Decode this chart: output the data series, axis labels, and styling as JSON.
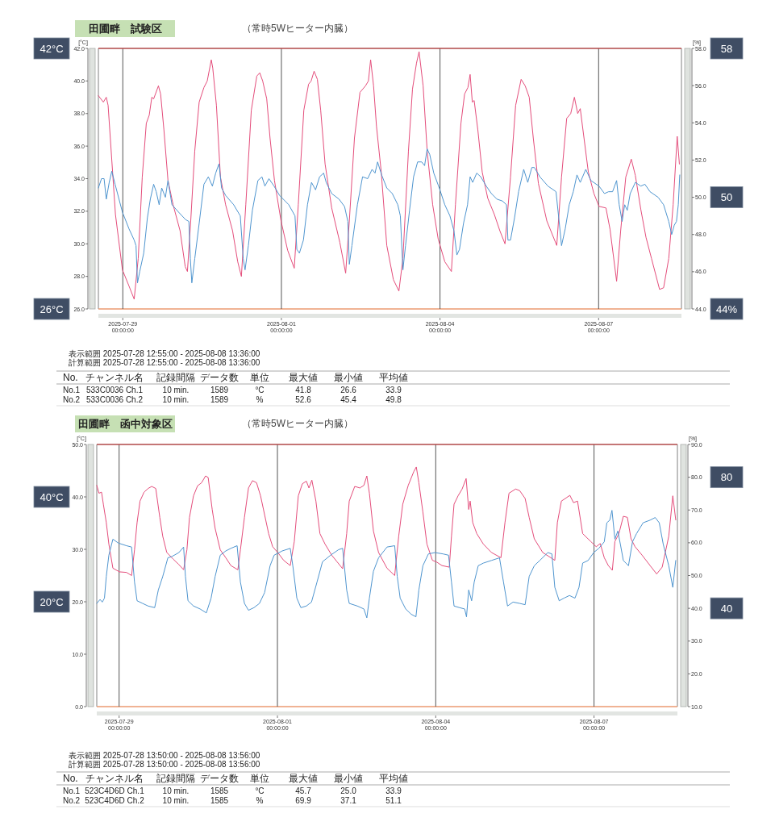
{
  "chart_data": [
    {
      "type": "line",
      "title": "田圃畔　試験区",
      "subtitle": "（常時5Wヒーター内臓）",
      "ylabel": "[°C]",
      "y2label": "[%]",
      "xlim": [
        "2025-07-28T12:55",
        "2025-08-08T13:36"
      ],
      "xticks": [
        {
          "value": "2025-07-29T00:00",
          "label": "2025-07-29 00:00:00"
        },
        {
          "value": "2025-08-01T00:00",
          "label": "2025-08-01 00:00:00"
        },
        {
          "value": "2025-08-04T00:00",
          "label": "2025-08-04 00:00:00"
        },
        {
          "value": "2025-08-07T00:00",
          "label": "2025-08-07 00:00:00"
        }
      ],
      "ylim": [
        26,
        42
      ],
      "yticks": [
        {
          "value": 26,
          "label": "26.0"
        },
        {
          "value": 28,
          "label": "28.0"
        },
        {
          "value": 30,
          "label": "30.0"
        },
        {
          "value": 32,
          "label": "32.0"
        },
        {
          "value": 34,
          "label": "34.0"
        },
        {
          "value": 36,
          "label": "36.0"
        },
        {
          "value": 38,
          "label": "38.0"
        },
        {
          "value": 40,
          "label": "40.0"
        },
        {
          "value": 42,
          "label": "42.0"
        }
      ],
      "y2lim": [
        44,
        58
      ],
      "y2ticks": [
        {
          "value": 44,
          "label": "44.0"
        },
        {
          "value": 46,
          "label": "46.0"
        },
        {
          "value": 48,
          "label": "48.0"
        },
        {
          "value": 50,
          "label": "50.0"
        },
        {
          "value": 52,
          "label": "52.0"
        },
        {
          "value": 54,
          "label": "54.0"
        },
        {
          "value": 56,
          "label": "56.0"
        },
        {
          "value": 58,
          "label": "58.0"
        }
      ],
      "grid": "x",
      "ref_lines": [
        {
          "axis": "y",
          "value": 42,
          "color": "#b04848"
        }
      ],
      "series": [
        {
          "color": "#e44d7b",
          "x": [
            "2025-07-28T12:55",
            "2025-07-28T15:10",
            "2025-07-28T16:30",
            "2025-07-28T17:20",
            "2025-07-28T20:40",
            "2025-07-28T23:50",
            "2025-07-29T02:50",
            "2025-07-29T05:10",
            "2025-07-29T07:00",
            "2025-07-29T08:50",
            "2025-07-29T10:40",
            "2025-07-29T12:00",
            "2025-07-29T13:10",
            "2025-07-29T14:00",
            "2025-07-29T16:10",
            "2025-07-29T17:10",
            "2025-07-29T18:40",
            "2025-07-29T20:30",
            "2025-07-29T22:50",
            "2025-07-30T02:00",
            "2025-07-30T04:20",
            "2025-07-30T05:20",
            "2025-07-30T06:50",
            "2025-07-30T08:40",
            "2025-07-30T10:40",
            "2025-07-30T12:50",
            "2025-07-30T14:20",
            "2025-07-30T16:10",
            "2025-07-30T16:50",
            "2025-07-30T18:30",
            "2025-07-30T20:20",
            "2025-07-30T22:40",
            "2025-07-31T01:50",
            "2025-07-31T04:10",
            "2025-07-31T05:50",
            "2025-07-31T07:50",
            "2025-07-31T10:20",
            "2025-07-31T12:50",
            "2025-07-31T14:10",
            "2025-07-31T15:30",
            "2025-07-31T17:20",
            "2025-07-31T18:50",
            "2025-07-31T20:50",
            "2025-07-31T23:50",
            "2025-08-01T02:50",
            "2025-08-01T05:50",
            "2025-08-01T07:40",
            "2025-08-01T10:10",
            "2025-08-01T12:20",
            "2025-08-01T13:30",
            "2025-08-01T14:50",
            "2025-08-01T16:20",
            "2025-08-01T17:50",
            "2025-08-01T19:50",
            "2025-08-01T22:50",
            "2025-08-02T02:30",
            "2025-08-02T05:10",
            "2025-08-02T06:50",
            "2025-08-02T09:10",
            "2025-08-02T11:40",
            "2025-08-02T14:10",
            "2025-08-02T15:30",
            "2025-08-02T16:30",
            "2025-08-02T17:50",
            "2025-08-02T19:10",
            "2025-08-02T21:20",
            "2025-08-02T23:50",
            "2025-08-03T02:50",
            "2025-08-03T05:20",
            "2025-08-03T07:10",
            "2025-08-03T09:40",
            "2025-08-03T11:30",
            "2025-08-03T13:20",
            "2025-08-03T14:30",
            "2025-08-03T16:20",
            "2025-08-03T18:10",
            "2025-08-03T20:40",
            "2025-08-03T23:10",
            "2025-08-04T02:10",
            "2025-08-04T05:10",
            "2025-08-04T07:00",
            "2025-08-04T09:30",
            "2025-08-04T11:10",
            "2025-08-04T12:40",
            "2025-08-04T13:40",
            "2025-08-04T14:40",
            "2025-08-04T15:30",
            "2025-08-04T17:10",
            "2025-08-04T19:10",
            "2025-08-04T21:40",
            "2025-08-05T00:40",
            "2025-08-05T03:10",
            "2025-08-05T05:30",
            "2025-08-05T08:00",
            "2025-08-05T10:20",
            "2025-08-05T12:50",
            "2025-08-05T14:40",
            "2025-08-05T16:30",
            "2025-08-05T18:20",
            "2025-08-05T20:40",
            "2025-08-06T00:30",
            "2025-08-06T05:00",
            "2025-08-06T07:10",
            "2025-08-06T09:30",
            "2025-08-06T11:20",
            "2025-08-06T13:00",
            "2025-08-06T14:30",
            "2025-08-06T15:40",
            "2025-08-06T17:10",
            "2025-08-06T19:20",
            "2025-08-06T21:50",
            "2025-08-07T00:10",
            "2025-08-07T03:20",
            "2025-08-07T05:10",
            "2025-08-07T08:10",
            "2025-08-07T10:00",
            "2025-08-07T12:20",
            "2025-08-07T14:50",
            "2025-08-07T16:40",
            "2025-08-07T19:10",
            "2025-08-07T21:30",
            "2025-08-08T00:00",
            "2025-08-08T03:40",
            "2025-08-08T05:30",
            "2025-08-08T07:50",
            "2025-08-08T09:50",
            "2025-08-08T11:40",
            "2025-08-08T12:40"
          ],
          "values": [
            39.1,
            38.7,
            39.0,
            38.5,
            31.8,
            28.4,
            27.4,
            26.6,
            29.1,
            34.1,
            37.4,
            37.9,
            39.0,
            38.9,
            39.7,
            39.2,
            37.0,
            33.9,
            32.4,
            30.8,
            28.6,
            28.3,
            31.4,
            35.7,
            38.7,
            39.6,
            40.0,
            41.3,
            40.8,
            38.5,
            34.1,
            32.4,
            30.8,
            28.9,
            28.0,
            32.4,
            38.2,
            40.3,
            40.5,
            40.0,
            38.9,
            36.5,
            33.9,
            31.4,
            29.6,
            28.5,
            32.4,
            38.2,
            39.8,
            40.0,
            40.6,
            40.1,
            38.2,
            34.9,
            32.2,
            30.1,
            28.2,
            31.4,
            36.5,
            39.3,
            39.7,
            40.0,
            41.3,
            39.7,
            37.2,
            34.4,
            29.9,
            27.8,
            27.1,
            29.1,
            35.7,
            39.5,
            41.1,
            41.8,
            39.7,
            35.7,
            32.4,
            30.3,
            28.9,
            28.3,
            32.4,
            37.4,
            39.2,
            39.6,
            40.4,
            38.7,
            38.8,
            37.0,
            34.4,
            32.8,
            31.8,
            30.8,
            30.0,
            34.1,
            38.5,
            40.1,
            39.7,
            39.0,
            36.5,
            33.7,
            31.4,
            29.9,
            34.1,
            37.7,
            38.0,
            39.0,
            38.0,
            38.3,
            36.7,
            34.4,
            33.1,
            32.3,
            32.2,
            30.9,
            27.7,
            30.8,
            34.1,
            35.2,
            34.2,
            32.1,
            30.4,
            29.1,
            27.2,
            27.3,
            29.1,
            32.4,
            36.6,
            34.9
          ]
        },
        {
          "color": "#4f95cf",
          "axis": "y2",
          "x": [
            "2025-07-28T12:55",
            "2025-07-28T14:20",
            "2025-07-28T15:30",
            "2025-07-28T16:30",
            "2025-07-28T17:50",
            "2025-07-28T19:00",
            "2025-07-28T20:30",
            "2025-07-28T23:50",
            "2025-07-29T02:50",
            "2025-07-29T05:10",
            "2025-07-29T06:00",
            "2025-07-29T06:40",
            "2025-07-29T07:40",
            "2025-07-29T09:30",
            "2025-07-29T11:10",
            "2025-07-29T12:30",
            "2025-07-29T14:00",
            "2025-07-29T15:10",
            "2025-07-29T16:30",
            "2025-07-29T17:40",
            "2025-07-29T19:20",
            "2025-07-29T20:30",
            "2025-07-29T22:20",
            "2025-07-30T01:20",
            "2025-07-30T04:30",
            "2025-07-30T06:00",
            "2025-07-30T06:40",
            "2025-07-30T07:20",
            "2025-07-30T08:40",
            "2025-07-30T10:40",
            "2025-07-30T12:50",
            "2025-07-30T14:50",
            "2025-07-30T16:40",
            "2025-07-30T18:10",
            "2025-07-30T19:40",
            "2025-07-30T20:50",
            "2025-07-30T22:40",
            "2025-07-31T02:20",
            "2025-07-31T05:20",
            "2025-07-31T06:40",
            "2025-07-31T07:30",
            "2025-07-31T09:00",
            "2025-07-31T10:50",
            "2025-07-31T13:20",
            "2025-07-31T15:10",
            "2025-07-31T16:30",
            "2025-07-31T18:20",
            "2025-07-31T20:40",
            "2025-07-31T23:10",
            "2025-08-01T03:20",
            "2025-08-01T06:10",
            "2025-08-01T07:00",
            "2025-08-01T08:10",
            "2025-08-01T10:00",
            "2025-08-01T11:50",
            "2025-08-01T13:40",
            "2025-08-01T15:30",
            "2025-08-01T17:20",
            "2025-08-01T19:10",
            "2025-08-01T20:20",
            "2025-08-01T22:50",
            "2025-08-02T02:10",
            "2025-08-02T04:40",
            "2025-08-02T06:10",
            "2025-08-02T06:50",
            "2025-08-02T08:00",
            "2025-08-02T10:30",
            "2025-08-02T12:50",
            "2025-08-02T15:10",
            "2025-08-02T17:10",
            "2025-08-02T18:30",
            "2025-08-02T19:40",
            "2025-08-02T21:30",
            "2025-08-02T23:50",
            "2025-08-03T02:20",
            "2025-08-03T04:50",
            "2025-08-03T06:00",
            "2025-08-03T07:10",
            "2025-08-03T08:20",
            "2025-08-03T10:10",
            "2025-08-03T12:00",
            "2025-08-03T13:50",
            "2025-08-03T15:40",
            "2025-08-03T17:00",
            "2025-08-03T18:10",
            "2025-08-03T19:20",
            "2025-08-03T21:10",
            "2025-08-03T23:40",
            "2025-08-04T02:10",
            "2025-08-04T04:30",
            "2025-08-04T06:20",
            "2025-08-04T07:40",
            "2025-08-04T08:50",
            "2025-08-04T10:40",
            "2025-08-04T12:30",
            "2025-08-04T13:40",
            "2025-08-04T14:50",
            "2025-08-04T16:40",
            "2025-08-04T18:30",
            "2025-08-04T21:00",
            "2025-08-04T23:20",
            "2025-08-05T01:50",
            "2025-08-05T04:20",
            "2025-08-05T06:10",
            "2025-08-05T06:50",
            "2025-08-05T08:00",
            "2025-08-05T09:50",
            "2025-08-05T11:40",
            "2025-08-05T14:00",
            "2025-08-05T15:50",
            "2025-08-05T17:40",
            "2025-08-05T18:50",
            "2025-08-05T21:20",
            "2025-08-06T01:00",
            "2025-08-06T04:40",
            "2025-08-06T06:30",
            "2025-08-06T07:10",
            "2025-08-06T08:50",
            "2025-08-06T10:40",
            "2025-08-06T12:30",
            "2025-08-06T14:10",
            "2025-08-06T15:40",
            "2025-08-06T18:10",
            "2025-08-06T20:30",
            "2025-08-07T00:10",
            "2025-08-07T02:40",
            "2025-08-07T04:30",
            "2025-08-07T06:20",
            "2025-08-07T08:10",
            "2025-08-07T09:20",
            "2025-08-07T10:40",
            "2025-08-07T11:50",
            "2025-08-07T13:00",
            "2025-08-07T14:20",
            "2025-08-07T15:30",
            "2025-08-07T16:40",
            "2025-08-07T19:10",
            "2025-08-07T21:00",
            "2025-08-07T23:20",
            "2025-08-08T03:00",
            "2025-08-08T05:30",
            "2025-08-08T07:50",
            "2025-08-08T09:10",
            "2025-08-08T10:20",
            "2025-08-08T11:20",
            "2025-08-08T12:10",
            "2025-08-08T12:50"
          ],
          "values": [
            50.5,
            51.0,
            51.0,
            49.9,
            50.8,
            51.4,
            50.7,
            49.2,
            48.3,
            47.7,
            47.4,
            45.4,
            46.0,
            47.0,
            48.9,
            49.9,
            50.7,
            50.3,
            49.6,
            50.5,
            50.0,
            50.9,
            49.6,
            49.2,
            48.8,
            48.7,
            46.7,
            45.4,
            46.7,
            48.6,
            50.7,
            51.1,
            50.6,
            51.3,
            51.8,
            50.5,
            50.1,
            49.6,
            49.0,
            46.7,
            46.1,
            47.4,
            49.3,
            50.9,
            51.1,
            50.6,
            51.0,
            50.6,
            50.1,
            49.6,
            49.0,
            47.2,
            47.0,
            47.7,
            49.6,
            50.8,
            50.4,
            51.1,
            51.3,
            50.8,
            50.2,
            49.9,
            49.5,
            48.7,
            46.4,
            47.4,
            49.6,
            51.1,
            51.0,
            51.5,
            51.3,
            51.9,
            51.2,
            50.5,
            50.2,
            49.6,
            49.0,
            46.1,
            47.4,
            49.3,
            51.1,
            51.9,
            51.9,
            51.7,
            52.6,
            52.3,
            51.3,
            50.5,
            49.6,
            49.0,
            48.2,
            46.9,
            47.2,
            48.6,
            49.6,
            51.1,
            50.8,
            51.3,
            51.1,
            50.6,
            50.2,
            49.9,
            49.8,
            49.6,
            47.7,
            47.7,
            48.9,
            50.3,
            51.5,
            50.8,
            51.6,
            51.6,
            51.1,
            50.6,
            50.3,
            48.2,
            47.4,
            48.3,
            49.6,
            50.3,
            51.2,
            50.8,
            51.5,
            50.9,
            50.6,
            50.2,
            50.3,
            50.3,
            50.9,
            49.6,
            48.7,
            49.6,
            49.3,
            50.2,
            50.5,
            50.8,
            50.6,
            50.7,
            50.3,
            50.0,
            49.6,
            48.7,
            48.0,
            48.5,
            48.7,
            49.6,
            51.2
          ]
        }
      ],
      "annotations": [
        "42°C",
        "26°C",
        "58",
        "50",
        "44%",
        "表示範囲 2025-07-28 12:55:00 - 2025-08-08 13:36:00",
        "計算範囲 2025-07-28 12:55:00 - 2025-08-08 13:36:00",
        "No.",
        "チャンネル名",
        "記録間隔",
        "データ数",
        "単位",
        "最大値",
        "最小値",
        "平均値",
        "No.1",
        "533C0036 Ch.1",
        "10 min.",
        "1589",
        "°C",
        "41.8",
        "26.6",
        "33.9",
        "No.2",
        "533C0036 Ch.2",
        "10 min.",
        "1589",
        "%",
        "52.6",
        "45.4",
        "49.8"
      ]
    },
    {
      "type": "line",
      "title": "田圃畔　函中対象区",
      "subtitle": "（常時5Wヒーター内臓）",
      "ylabel": "[°C]",
      "y2label": "[%]",
      "xlim": [
        "2025-07-28T13:50",
        "2025-08-08T13:56"
      ],
      "xticks": [
        {
          "value": "2025-07-29T00:00",
          "label": "2025-07-29 00:00:00"
        },
        {
          "value": "2025-08-01T00:00",
          "label": "2025-08-01 00:00:00"
        },
        {
          "value": "2025-08-04T00:00",
          "label": "2025-08-04 00:00:00"
        },
        {
          "value": "2025-08-07T00:00",
          "label": "2025-08-07 00:00:00"
        }
      ],
      "ylim": [
        0,
        50
      ],
      "yticks": [
        {
          "value": 0,
          "label": "0.0"
        },
        {
          "value": 10,
          "label": "10.0"
        },
        {
          "value": 20,
          "label": "20.0"
        },
        {
          "value": 30,
          "label": "30.0"
        },
        {
          "value": 40,
          "label": "40.0"
        },
        {
          "value": 50,
          "label": "50.0"
        }
      ],
      "y2lim": [
        10,
        90
      ],
      "y2ticks": [
        {
          "value": 10,
          "label": "10.0"
        },
        {
          "value": 20,
          "label": "20.0"
        },
        {
          "value": 30,
          "label": "30.0"
        },
        {
          "value": 40,
          "label": "40.0"
        },
        {
          "value": 50,
          "label": "50.0"
        },
        {
          "value": 60,
          "label": "60.0"
        },
        {
          "value": 70,
          "label": "70.0"
        },
        {
          "value": 80,
          "label": "80.0"
        },
        {
          "value": 90,
          "label": "90.0"
        }
      ],
      "grid": "x",
      "ref_lines": [
        {
          "axis": "y",
          "value": 50,
          "color": "#b04848"
        }
      ],
      "series": [
        {
          "color": "#e44d7b",
          "x": [
            "2025-07-28T13:50",
            "2025-07-28T14:50",
            "2025-07-28T16:00",
            "2025-07-28T16:50",
            "2025-07-28T18:10",
            "2025-07-28T19:20",
            "2025-07-28T21:10",
            "2025-07-29T00:10",
            "2025-07-29T03:20",
            "2025-07-29T05:40",
            "2025-07-29T07:00",
            "2025-07-29T08:10",
            "2025-07-29T09:30",
            "2025-07-29T11:20",
            "2025-07-29T13:10",
            "2025-07-29T14:50",
            "2025-07-29T16:40",
            "2025-07-29T18:30",
            "2025-07-29T19:50",
            "2025-07-29T21:40",
            "2025-07-30T00:40",
            "2025-07-30T03:10",
            "2025-07-30T05:20",
            "2025-07-30T06:50",
            "2025-07-30T08:00",
            "2025-07-30T09:50",
            "2025-07-30T11:40",
            "2025-07-30T13:30",
            "2025-07-30T15:20",
            "2025-07-30T16:30",
            "2025-07-30T18:20",
            "2025-07-30T19:40",
            "2025-07-30T22:00",
            "2025-07-31T00:30",
            "2025-07-31T02:50",
            "2025-07-31T06:00",
            "2025-07-31T07:10",
            "2025-07-31T09:00",
            "2025-07-31T10:50",
            "2025-07-31T12:40",
            "2025-07-31T14:30",
            "2025-07-31T16:20",
            "2025-07-31T18:10",
            "2025-07-31T20:00",
            "2025-07-31T21:50",
            "2025-08-01T00:20",
            "2025-08-01T02:50",
            "2025-08-01T05:50",
            "2025-08-01T07:40",
            "2025-08-01T09:30",
            "2025-08-01T11:20",
            "2025-08-01T13:10",
            "2025-08-01T14:20",
            "2025-08-01T15:40",
            "2025-08-01T17:30",
            "2025-08-01T19:20",
            "2025-08-01T21:40",
            "2025-08-02T00:40",
            "2025-08-02T03:10",
            "2025-08-02T05:40",
            "2025-08-02T07:30",
            "2025-08-02T08:40",
            "2025-08-02T11:10",
            "2025-08-02T13:30",
            "2025-08-02T15:20",
            "2025-08-02T16:40",
            "2025-08-02T17:50",
            "2025-08-02T19:40",
            "2025-08-02T22:00",
            "2025-08-03T01:50",
            "2025-08-03T05:20",
            "2025-08-03T07:10",
            "2025-08-03T09:00",
            "2025-08-03T11:30",
            "2025-08-03T14:00",
            "2025-08-03T15:10",
            "2025-08-03T16:20",
            "2025-08-03T18:10",
            "2025-08-03T20:00",
            "2025-08-03T22:30",
            "2025-08-04T00:20",
            "2025-08-04T02:50",
            "2025-08-04T06:10",
            "2025-08-04T07:10",
            "2025-08-04T08:20",
            "2025-08-04T10:10",
            "2025-08-04T12:00",
            "2025-08-04T13:50",
            "2025-08-04T15:00",
            "2025-08-04T15:40",
            "2025-08-04T16:50",
            "2025-08-04T18:40",
            "2025-08-04T21:40",
            "2025-08-05T01:20",
            "2025-08-05T05:40",
            "2025-08-05T07:30",
            "2025-08-05T09:20",
            "2025-08-05T12:20",
            "2025-08-05T14:10",
            "2025-08-05T16:40",
            "2025-08-05T18:30",
            "2025-08-05T20:50",
            "2025-08-06T00:40",
            "2025-08-06T04:20",
            "2025-08-06T06:10",
            "2025-08-06T07:20",
            "2025-08-06T09:10",
            "2025-08-06T11:40",
            "2025-08-06T13:00",
            "2025-08-06T14:40",
            "2025-08-06T16:30",
            "2025-08-06T18:50",
            "2025-08-06T22:30",
            "2025-08-07T01:00",
            "2025-08-07T02:50",
            "2025-08-07T04:40",
            "2025-08-07T06:30",
            "2025-08-07T08:20",
            "2025-08-07T09:30",
            "2025-08-07T11:20",
            "2025-08-07T13:20",
            "2025-08-07T15:10",
            "2025-08-07T16:50",
            "2025-08-07T18:40",
            "2025-08-07T21:50",
            "2025-08-08T01:30",
            "2025-08-08T04:30",
            "2025-08-08T07:00",
            "2025-08-08T10:00",
            "2025-08-08T11:50",
            "2025-08-08T13:10"
          ],
          "values": [
            42.2,
            40.7,
            40.9,
            38.6,
            35.1,
            31.0,
            26.4,
            25.7,
            25.6,
            25.0,
            29.9,
            35.1,
            39.2,
            40.9,
            41.6,
            42.0,
            41.6,
            36.1,
            32.5,
            29.4,
            28.1,
            27.1,
            26.1,
            29.9,
            36.1,
            40.2,
            42.1,
            42.7,
            44.0,
            43.7,
            37.6,
            34.0,
            29.9,
            28.4,
            26.9,
            26.1,
            29.9,
            36.1,
            41.7,
            43.1,
            42.7,
            40.2,
            36.6,
            33.0,
            30.5,
            29.3,
            27.9,
            26.9,
            31.5,
            40.2,
            42.5,
            43.0,
            41.7,
            43.2,
            39.2,
            33.0,
            31.0,
            28.9,
            27.6,
            26.3,
            33.0,
            39.2,
            42.0,
            41.7,
            42.2,
            44.0,
            40.7,
            33.5,
            29.4,
            26.4,
            25.0,
            32.5,
            38.6,
            42.2,
            44.8,
            45.7,
            42.7,
            37.1,
            31.0,
            27.9,
            27.6,
            26.9,
            26.6,
            32.5,
            38.6,
            40.2,
            41.5,
            43.5,
            37.6,
            39.2,
            35.1,
            33.0,
            31.0,
            29.4,
            28.4,
            35.1,
            40.7,
            41.5,
            41.2,
            39.7,
            36.1,
            32.0,
            29.4,
            28.4,
            27.9,
            35.1,
            39.2,
            39.9,
            40.3,
            38.9,
            39.2,
            33.0,
            31.5,
            30.5,
            31.1,
            28.4,
            26.9,
            26.0,
            31.5,
            33.0,
            36.3,
            36.1,
            32.0,
            30.5,
            28.9,
            26.9,
            25.3,
            26.6,
            32.5,
            40.2,
            35.6
          ]
        },
        {
          "color": "#4f95cf",
          "axis": "y2",
          "x": [
            "2025-07-28T13:50",
            "2025-07-28T15:20",
            "2025-07-28T16:20",
            "2025-07-28T17:20",
            "2025-07-28T18:10",
            "2025-07-28T19:20",
            "2025-07-28T21:10",
            "2025-07-28T23:40",
            "2025-07-29T03:20",
            "2025-07-29T05:40",
            "2025-07-29T07:00",
            "2025-07-29T08:10",
            "2025-07-29T10:40",
            "2025-07-29T13:10",
            "2025-07-29T16:10",
            "2025-07-29T17:50",
            "2025-07-29T19:50",
            "2025-07-29T22:10",
            "2025-07-30T00:00",
            "2025-07-30T03:10",
            "2025-07-30T05:20",
            "2025-07-30T06:10",
            "2025-07-30T07:20",
            "2025-07-30T09:50",
            "2025-07-30T12:50",
            "2025-07-30T15:40",
            "2025-07-30T17:50",
            "2025-07-30T19:40",
            "2025-07-30T22:00",
            "2025-07-31T00:30",
            "2025-07-31T02:50",
            "2025-07-31T05:40",
            "2025-07-31T07:10",
            "2025-07-31T09:00",
            "2025-07-31T10:50",
            "2025-07-31T13:20",
            "2025-07-31T15:50",
            "2025-07-31T18:10",
            "2025-07-31T20:40",
            "2025-07-31T22:30",
            "2025-08-01T02:10",
            "2025-08-01T05:50",
            "2025-08-01T07:00",
            "2025-08-01T08:50",
            "2025-08-01T10:40",
            "2025-08-01T13:10",
            "2025-08-01T15:30",
            "2025-08-01T18:00",
            "2025-08-01T20:30",
            "2025-08-02T00:10",
            "2025-08-02T03:50",
            "2025-08-02T05:40",
            "2025-08-02T07:30",
            "2025-08-02T08:40",
            "2025-08-02T12:20",
            "2025-08-02T15:20",
            "2025-08-02T16:40",
            "2025-08-02T17:50",
            "2025-08-02T19:40",
            "2025-08-02T22:00",
            "2025-08-03T01:50",
            "2025-08-03T05:20",
            "2025-08-03T06:30",
            "2025-08-03T07:50",
            "2025-08-03T10:20",
            "2025-08-03T12:50",
            "2025-08-03T15:00",
            "2025-08-03T16:20",
            "2025-08-03T18:10",
            "2025-08-03T20:40",
            "2025-08-03T23:40",
            "2025-08-04T03:20",
            "2025-08-04T05:50",
            "2025-08-04T07:10",
            "2025-08-04T08:20",
            "2025-08-04T10:50",
            "2025-08-04T13:10",
            "2025-08-04T14:00",
            "2025-08-04T15:00",
            "2025-08-04T16:20",
            "2025-08-04T17:30",
            "2025-08-04T19:20",
            "2025-08-04T21:40",
            "2025-08-05T01:20",
            "2025-08-05T05:00",
            "2025-08-05T06:50",
            "2025-08-05T08:40",
            "2025-08-05T11:10",
            "2025-08-05T14:10",
            "2025-08-05T16:40",
            "2025-08-05T18:30",
            "2025-08-05T20:50",
            "2025-08-05T23:20",
            "2025-08-06T03:00",
            "2025-08-06T04:50",
            "2025-08-06T06:10",
            "2025-08-06T08:10",
            "2025-08-06T10:20",
            "2025-08-06T12:50",
            "2025-08-06T15:20",
            "2025-08-06T17:10",
            "2025-08-06T18:50",
            "2025-08-06T21:20",
            "2025-08-06T23:50",
            "2025-08-07T02:10",
            "2025-08-07T04:40",
            "2025-08-07T05:50",
            "2025-08-07T07:10",
            "2025-08-07T08:10",
            "2025-08-07T09:30",
            "2025-08-07T10:50",
            "2025-08-07T12:00",
            "2025-08-07T13:20",
            "2025-08-07T14:30",
            "2025-08-07T15:40",
            "2025-08-07T17:30",
            "2025-08-07T19:20",
            "2025-08-07T22:20",
            "2025-08-08T01:30",
            "2025-08-08T03:50",
            "2025-08-08T05:40",
            "2025-08-08T07:30",
            "2025-08-08T10:00",
            "2025-08-08T11:50",
            "2025-08-08T13:10"
          ],
          "values": [
            41.5,
            42.7,
            41.9,
            43.1,
            49.7,
            56.2,
            61.1,
            59.9,
            59.1,
            58.7,
            48.0,
            42.3,
            41.5,
            40.7,
            40.2,
            45.6,
            49.7,
            55.4,
            55.8,
            57.0,
            58.7,
            49.7,
            42.3,
            40.7,
            39.8,
            38.6,
            43.1,
            49.7,
            56.2,
            57.5,
            58.3,
            59.1,
            48.0,
            41.5,
            39.4,
            40.2,
            41.5,
            44.8,
            53.0,
            56.2,
            57.5,
            58.3,
            53.0,
            43.1,
            40.2,
            40.7,
            41.9,
            48.0,
            54.2,
            56.2,
            57.9,
            58.3,
            45.6,
            41.5,
            40.7,
            39.8,
            37.1,
            43.1,
            51.3,
            55.4,
            58.7,
            59.1,
            49.7,
            43.1,
            39.8,
            38.2,
            37.4,
            45.6,
            53.0,
            56.6,
            57.0,
            56.6,
            56.2,
            48.0,
            40.7,
            40.2,
            39.8,
            37.4,
            45.6,
            42.3,
            48.0,
            53.0,
            53.8,
            54.6,
            55.4,
            48.0,
            40.7,
            41.9,
            41.5,
            41.1,
            49.7,
            53.0,
            54.6,
            57.0,
            56.6,
            46.4,
            42.3,
            43.1,
            43.9,
            43.1,
            46.4,
            53.8,
            54.6,
            57.0,
            58.3,
            60.3,
            66.1,
            66.9,
            69.9,
            61.1,
            63.6,
            59.5,
            54.6,
            53.8,
            53.0,
            60.3,
            62.8,
            66.1,
            66.9,
            67.7,
            66.1,
            59.5,
            53.0,
            46.4,
            54.6
          ]
        }
      ],
      "annotations": [
        "40°C",
        "20°C",
        "80",
        "40",
        "表示範囲 2025-07-28 13:50:00 - 2025-08-08 13:56:00",
        "計算範囲 2025-07-28 13:50:00 - 2025-08-08 13:56:00",
        "No.",
        "チャンネル名",
        "記録間隔",
        "データ数",
        "単位",
        "最大値",
        "最小値",
        "平均値",
        "No.1",
        "523C4D6D Ch.1",
        "10 min.",
        "1585",
        "°C",
        "45.7",
        "25.0",
        "33.9",
        "No.2",
        "523C4D6D Ch.2",
        "10 min.",
        "1585",
        "%",
        "69.9",
        "37.1",
        "51.1"
      ]
    }
  ]
}
